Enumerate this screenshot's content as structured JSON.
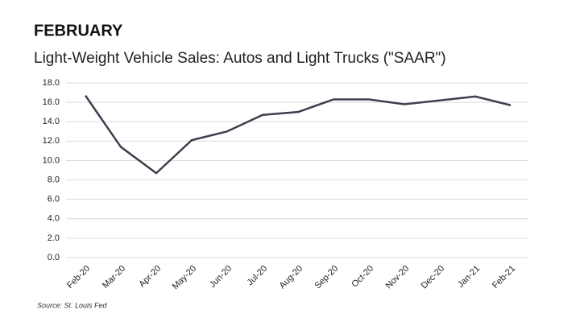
{
  "chart_data": {
    "type": "line",
    "title": "FEBRUARY",
    "subtitle": "Light-Weight Vehicle Sales: Autos and Light Trucks (\"SAAR\")",
    "source": "Source: St. Louis Fed",
    "categories": [
      "Feb-20",
      "Mar-20",
      "Apr-20",
      "May-20",
      "Jun-20",
      "Jul-20",
      "Aug-20",
      "Sep-20",
      "Oct-20",
      "Nov-20",
      "Dec-20",
      "Jan-21",
      "Feb-21"
    ],
    "values": [
      16.7,
      11.4,
      8.7,
      12.1,
      13.0,
      14.7,
      15.0,
      16.3,
      16.3,
      15.8,
      16.2,
      16.6,
      15.7
    ],
    "color": "#3b3f4e",
    "ylim": [
      0,
      18
    ],
    "yticks": [
      {
        "value": 0,
        "label": "0.0"
      },
      {
        "value": 2,
        "label": "2.0"
      },
      {
        "value": 4,
        "label": "4.0"
      },
      {
        "value": 6,
        "label": "6.0"
      },
      {
        "value": 8,
        "label": "8.0"
      },
      {
        "value": 10,
        "label": "10.0"
      },
      {
        "value": 12,
        "label": "12.0"
      },
      {
        "value": 14,
        "label": "14.0"
      },
      {
        "value": 16,
        "label": "16.0"
      },
      {
        "value": 18,
        "label": "18.0"
      }
    ],
    "grid": true
  }
}
